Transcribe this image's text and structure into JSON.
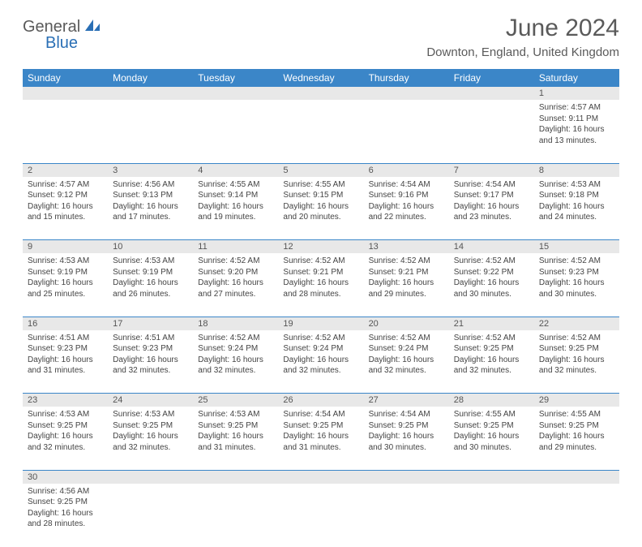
{
  "brand": {
    "part1": "General",
    "part2": "Blue",
    "icon_color": "#2a6fb5"
  },
  "title": "June 2024",
  "location": "Downton, England, United Kingdom",
  "colors": {
    "header_bg": "#3b86c8",
    "header_text": "#ffffff",
    "daynum_bg": "#e8e8e8",
    "cell_border": "#3b86c8",
    "text": "#444444"
  },
  "day_headers": [
    "Sunday",
    "Monday",
    "Tuesday",
    "Wednesday",
    "Thursday",
    "Friday",
    "Saturday"
  ],
  "weeks": [
    {
      "nums": [
        "",
        "",
        "",
        "",
        "",
        "",
        "1"
      ],
      "cells": [
        null,
        null,
        null,
        null,
        null,
        null,
        {
          "sunrise": "4:57 AM",
          "sunset": "9:11 PM",
          "daylight": "16 hours and 13 minutes."
        }
      ]
    },
    {
      "nums": [
        "2",
        "3",
        "4",
        "5",
        "6",
        "7",
        "8"
      ],
      "cells": [
        {
          "sunrise": "4:57 AM",
          "sunset": "9:12 PM",
          "daylight": "16 hours and 15 minutes."
        },
        {
          "sunrise": "4:56 AM",
          "sunset": "9:13 PM",
          "daylight": "16 hours and 17 minutes."
        },
        {
          "sunrise": "4:55 AM",
          "sunset": "9:14 PM",
          "daylight": "16 hours and 19 minutes."
        },
        {
          "sunrise": "4:55 AM",
          "sunset": "9:15 PM",
          "daylight": "16 hours and 20 minutes."
        },
        {
          "sunrise": "4:54 AM",
          "sunset": "9:16 PM",
          "daylight": "16 hours and 22 minutes."
        },
        {
          "sunrise": "4:54 AM",
          "sunset": "9:17 PM",
          "daylight": "16 hours and 23 minutes."
        },
        {
          "sunrise": "4:53 AM",
          "sunset": "9:18 PM",
          "daylight": "16 hours and 24 minutes."
        }
      ]
    },
    {
      "nums": [
        "9",
        "10",
        "11",
        "12",
        "13",
        "14",
        "15"
      ],
      "cells": [
        {
          "sunrise": "4:53 AM",
          "sunset": "9:19 PM",
          "daylight": "16 hours and 25 minutes."
        },
        {
          "sunrise": "4:53 AM",
          "sunset": "9:19 PM",
          "daylight": "16 hours and 26 minutes."
        },
        {
          "sunrise": "4:52 AM",
          "sunset": "9:20 PM",
          "daylight": "16 hours and 27 minutes."
        },
        {
          "sunrise": "4:52 AM",
          "sunset": "9:21 PM",
          "daylight": "16 hours and 28 minutes."
        },
        {
          "sunrise": "4:52 AM",
          "sunset": "9:21 PM",
          "daylight": "16 hours and 29 minutes."
        },
        {
          "sunrise": "4:52 AM",
          "sunset": "9:22 PM",
          "daylight": "16 hours and 30 minutes."
        },
        {
          "sunrise": "4:52 AM",
          "sunset": "9:23 PM",
          "daylight": "16 hours and 30 minutes."
        }
      ]
    },
    {
      "nums": [
        "16",
        "17",
        "18",
        "19",
        "20",
        "21",
        "22"
      ],
      "cells": [
        {
          "sunrise": "4:51 AM",
          "sunset": "9:23 PM",
          "daylight": "16 hours and 31 minutes."
        },
        {
          "sunrise": "4:51 AM",
          "sunset": "9:23 PM",
          "daylight": "16 hours and 32 minutes."
        },
        {
          "sunrise": "4:52 AM",
          "sunset": "9:24 PM",
          "daylight": "16 hours and 32 minutes."
        },
        {
          "sunrise": "4:52 AM",
          "sunset": "9:24 PM",
          "daylight": "16 hours and 32 minutes."
        },
        {
          "sunrise": "4:52 AM",
          "sunset": "9:24 PM",
          "daylight": "16 hours and 32 minutes."
        },
        {
          "sunrise": "4:52 AM",
          "sunset": "9:25 PM",
          "daylight": "16 hours and 32 minutes."
        },
        {
          "sunrise": "4:52 AM",
          "sunset": "9:25 PM",
          "daylight": "16 hours and 32 minutes."
        }
      ]
    },
    {
      "nums": [
        "23",
        "24",
        "25",
        "26",
        "27",
        "28",
        "29"
      ],
      "cells": [
        {
          "sunrise": "4:53 AM",
          "sunset": "9:25 PM",
          "daylight": "16 hours and 32 minutes."
        },
        {
          "sunrise": "4:53 AM",
          "sunset": "9:25 PM",
          "daylight": "16 hours and 32 minutes."
        },
        {
          "sunrise": "4:53 AM",
          "sunset": "9:25 PM",
          "daylight": "16 hours and 31 minutes."
        },
        {
          "sunrise": "4:54 AM",
          "sunset": "9:25 PM",
          "daylight": "16 hours and 31 minutes."
        },
        {
          "sunrise": "4:54 AM",
          "sunset": "9:25 PM",
          "daylight": "16 hours and 30 minutes."
        },
        {
          "sunrise": "4:55 AM",
          "sunset": "9:25 PM",
          "daylight": "16 hours and 30 minutes."
        },
        {
          "sunrise": "4:55 AM",
          "sunset": "9:25 PM",
          "daylight": "16 hours and 29 minutes."
        }
      ]
    },
    {
      "nums": [
        "30",
        "",
        "",
        "",
        "",
        "",
        ""
      ],
      "cells": [
        {
          "sunrise": "4:56 AM",
          "sunset": "9:25 PM",
          "daylight": "16 hours and 28 minutes."
        },
        null,
        null,
        null,
        null,
        null,
        null
      ]
    }
  ],
  "labels": {
    "sunrise": "Sunrise:",
    "sunset": "Sunset:",
    "daylight": "Daylight:"
  }
}
